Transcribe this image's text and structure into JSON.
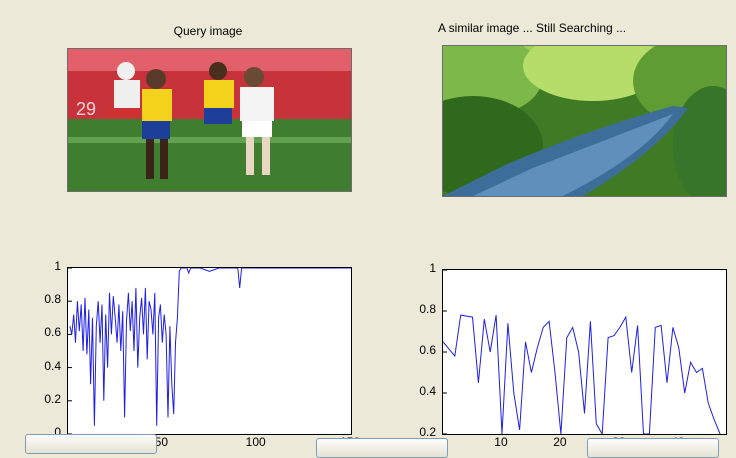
{
  "panels": {
    "query_title": "Query image",
    "result_title": "A similar image ... Still Searching ..."
  },
  "colors": {
    "line": "#1f1fe6",
    "background": "#ece9d8"
  },
  "chart_data": [
    {
      "type": "line",
      "title": "",
      "ylim": [
        0,
        1
      ],
      "xlim": [
        0,
        150
      ],
      "yticks": [
        "0",
        "0.2",
        "0.4",
        "0.6",
        "0.8",
        "1"
      ],
      "xticks": [
        "50",
        "100",
        "150"
      ],
      "x": [
        1,
        2,
        3,
        4,
        5,
        6,
        7,
        8,
        9,
        10,
        11,
        12,
        13,
        14,
        15,
        16,
        17,
        18,
        19,
        20,
        21,
        22,
        23,
        24,
        25,
        26,
        27,
        28,
        29,
        30,
        31,
        32,
        33,
        34,
        35,
        36,
        37,
        38,
        39,
        40,
        41,
        42,
        43,
        44,
        45,
        46,
        47,
        48,
        49,
        50,
        51,
        52,
        53,
        54,
        55,
        56,
        57,
        58,
        59,
        60,
        61,
        62,
        63,
        64,
        65,
        66,
        67,
        68,
        69,
        70,
        75,
        80,
        85,
        90,
        91,
        92,
        95,
        100,
        105,
        110,
        120,
        130,
        140,
        150
      ],
      "y": [
        0.65,
        0.6,
        0.72,
        0.55,
        0.8,
        0.62,
        0.78,
        0.5,
        0.82,
        0.48,
        0.75,
        0.3,
        0.7,
        0.05,
        0.65,
        0.8,
        0.55,
        0.78,
        0.2,
        0.72,
        0.4,
        0.85,
        0.6,
        0.83,
        0.7,
        0.55,
        0.78,
        0.5,
        0.74,
        0.1,
        0.68,
        0.85,
        0.62,
        0.8,
        0.5,
        0.88,
        0.4,
        0.7,
        0.82,
        0.6,
        0.88,
        0.45,
        0.8,
        0.75,
        0.6,
        0.85,
        0.05,
        0.7,
        0.78,
        0.55,
        0.72,
        0.6,
        0.1,
        0.65,
        0.3,
        0.12,
        0.55,
        0.7,
        0.98,
        1,
        1,
        1,
        1,
        0.97,
        1,
        1,
        1,
        1,
        1,
        1,
        0.98,
        1,
        1,
        1,
        0.88,
        1,
        1,
        1,
        1,
        1,
        1,
        1,
        1,
        1
      ]
    },
    {
      "type": "line",
      "title": "",
      "ylim": [
        0.2,
        1
      ],
      "xlim": [
        0,
        48
      ],
      "yticks": [
        "0.2",
        "0.4",
        "0.6",
        "0.8",
        "1"
      ],
      "xticks": [
        "10",
        "20",
        "30",
        "40"
      ],
      "x": [
        0,
        2,
        3,
        5,
        6,
        7,
        8,
        9,
        10,
        11,
        12,
        13,
        14,
        15,
        16,
        17,
        18,
        19,
        20,
        21,
        22,
        23,
        24,
        25,
        26,
        27,
        28,
        29,
        30,
        31,
        32,
        33,
        34,
        35,
        36,
        37,
        38,
        39,
        40,
        41,
        42,
        43,
        44,
        45,
        46,
        47
      ],
      "y": [
        0.65,
        0.58,
        0.78,
        0.77,
        0.45,
        0.76,
        0.6,
        0.78,
        0.2,
        0.74,
        0.4,
        0.22,
        0.65,
        0.5,
        0.62,
        0.72,
        0.75,
        0.5,
        0.2,
        0.67,
        0.72,
        0.6,
        0.3,
        0.75,
        0.25,
        0.2,
        0.67,
        0.68,
        0.72,
        0.77,
        0.5,
        0.73,
        0.2,
        0.2,
        0.72,
        0.73,
        0.45,
        0.72,
        0.62,
        0.4,
        0.55,
        0.5,
        0.52,
        0.35,
        0.27,
        0.2
      ]
    }
  ]
}
